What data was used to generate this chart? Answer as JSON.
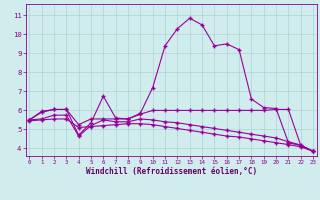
{
  "line1_x": [
    0,
    1,
    2,
    3,
    4,
    5,
    6,
    7,
    8,
    9,
    10,
    11,
    12,
    13,
    14,
    15,
    16,
    17,
    18,
    19,
    20,
    21,
    22,
    23
  ],
  "line1_y": [
    5.5,
    5.95,
    6.05,
    6.05,
    4.7,
    5.35,
    6.75,
    5.6,
    5.55,
    5.85,
    7.2,
    9.4,
    10.3,
    10.85,
    10.5,
    9.4,
    9.5,
    9.2,
    6.6,
    6.15,
    6.1,
    4.3,
    4.15,
    3.85
  ],
  "line2_x": [
    0,
    1,
    2,
    3,
    4,
    5,
    6,
    7,
    8,
    9,
    10,
    11,
    12,
    13,
    14,
    15,
    16,
    17,
    18,
    19,
    20,
    21,
    22,
    23
  ],
  "line2_y": [
    5.5,
    5.9,
    6.05,
    6.05,
    5.25,
    5.55,
    5.55,
    5.55,
    5.55,
    5.8,
    6.0,
    6.0,
    6.0,
    6.0,
    6.0,
    6.0,
    6.0,
    6.0,
    6.0,
    6.0,
    6.05,
    6.05,
    4.15,
    3.85
  ],
  "line3_x": [
    0,
    1,
    2,
    3,
    4,
    5,
    6,
    7,
    8,
    9,
    10,
    11,
    12,
    13,
    14,
    15,
    16,
    17,
    18,
    19,
    20,
    21,
    22,
    23
  ],
  "line3_y": [
    5.5,
    5.55,
    5.75,
    5.75,
    4.65,
    5.2,
    5.5,
    5.4,
    5.4,
    5.55,
    5.5,
    5.4,
    5.35,
    5.25,
    5.15,
    5.05,
    4.95,
    4.85,
    4.75,
    4.65,
    4.55,
    4.35,
    4.18,
    3.85
  ],
  "line4_x": [
    0,
    1,
    2,
    3,
    4,
    5,
    6,
    7,
    8,
    9,
    10,
    11,
    12,
    13,
    14,
    15,
    16,
    17,
    18,
    19,
    20,
    21,
    22,
    23
  ],
  "line4_y": [
    5.45,
    5.5,
    5.55,
    5.55,
    5.1,
    5.15,
    5.2,
    5.25,
    5.3,
    5.3,
    5.25,
    5.15,
    5.05,
    4.95,
    4.85,
    4.75,
    4.65,
    4.6,
    4.5,
    4.4,
    4.3,
    4.2,
    4.08,
    3.85
  ],
  "line_color": "#990099",
  "marker": "+",
  "bg_color": "#d0ecec",
  "grid_color": "#b0d8d8",
  "xlabel": "Windchill (Refroidissement éolien,°C)",
  "xlabel_color": "#660066",
  "ylabel_ticks": [
    4,
    5,
    6,
    7,
    8,
    9,
    10,
    11
  ],
  "xticks": [
    0,
    1,
    2,
    3,
    4,
    5,
    6,
    7,
    8,
    9,
    10,
    11,
    12,
    13,
    14,
    15,
    16,
    17,
    18,
    19,
    20,
    21,
    22,
    23
  ],
  "xlim": [
    -0.3,
    23.3
  ],
  "ylim": [
    3.6,
    11.6
  ],
  "tick_label_color": "#880088",
  "axis_color": "#880088"
}
